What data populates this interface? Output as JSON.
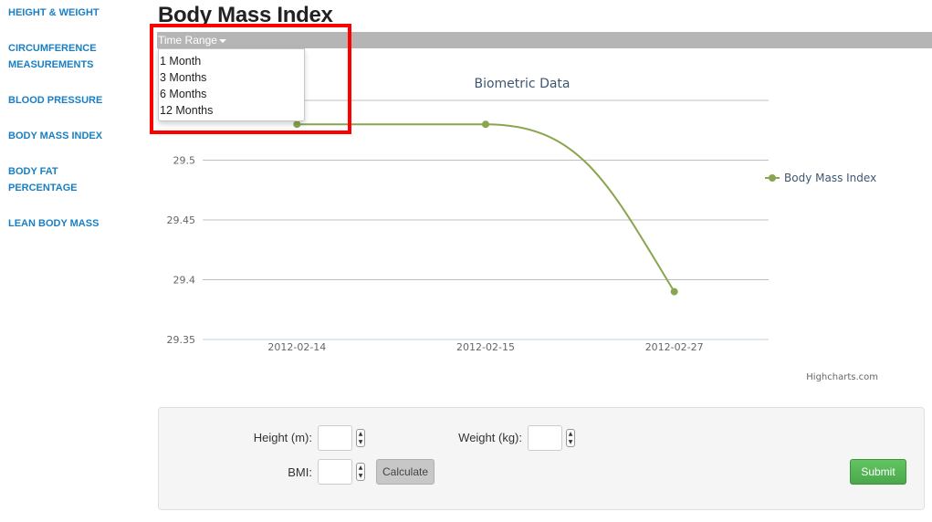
{
  "sidebar": {
    "items": [
      {
        "lines": [
          "HEIGHT & WEIGHT"
        ]
      },
      {
        "lines": [
          "CIRCUMFERENCE",
          "MEASUREMENTS"
        ]
      },
      {
        "lines": [
          "BLOOD PRESSURE"
        ]
      },
      {
        "lines": [
          "BODY MASS INDEX"
        ]
      },
      {
        "lines": [
          "BODY FAT",
          "PERCENTAGE"
        ]
      },
      {
        "lines": [
          "LEAN BODY MASS"
        ]
      }
    ]
  },
  "header": {
    "title": "Body Mass Index",
    "time_range_label": "Time Range"
  },
  "time_range_menu": {
    "options": [
      "1 Month",
      "3 Months",
      "6 Months",
      "12 Months"
    ]
  },
  "chart_data": {
    "type": "line",
    "title": "Biometric Data",
    "categories": [
      "2012-02-14",
      "2012-02-15",
      "2012-02-27"
    ],
    "series": [
      {
        "name": "Body Mass Index",
        "values": [
          29.53,
          29.53,
          29.39
        ],
        "color": "#89a54e"
      }
    ],
    "y_ticks": [
      "29.35",
      "29.4",
      "29.45",
      "29.5"
    ],
    "ylim": [
      29.35,
      29.55
    ],
    "grid": true,
    "legend": "right",
    "credits": "Highcharts.com"
  },
  "form": {
    "height_label": "Height (m):",
    "weight_label": "Weight (kg):",
    "bmi_label": "BMI:",
    "calculate_label": "Calculate",
    "submit_label": "Submit"
  },
  "colors": {
    "link": "#1a7fc2",
    "toolbar": "#b5b5b5",
    "series": "#89a54e",
    "submit": "#5bb75b",
    "highlight": "#ff0000"
  }
}
